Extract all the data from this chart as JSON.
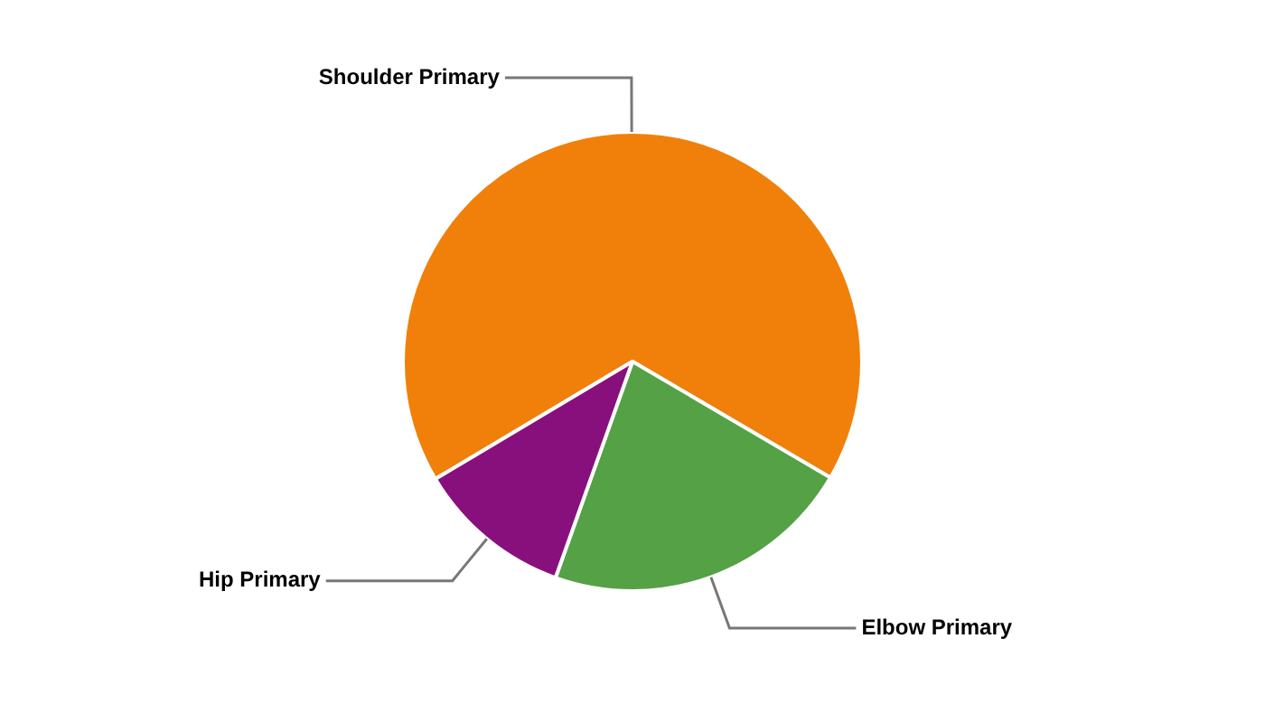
{
  "chart_data": {
    "type": "pie",
    "categories": [
      "Shoulder Primary",
      "Elbow Primary",
      "Hip Primary"
    ],
    "values": [
      67,
      22,
      11
    ],
    "colors": [
      "#f0800a",
      "#55a145",
      "#88107c"
    ],
    "legend": false
  }
}
